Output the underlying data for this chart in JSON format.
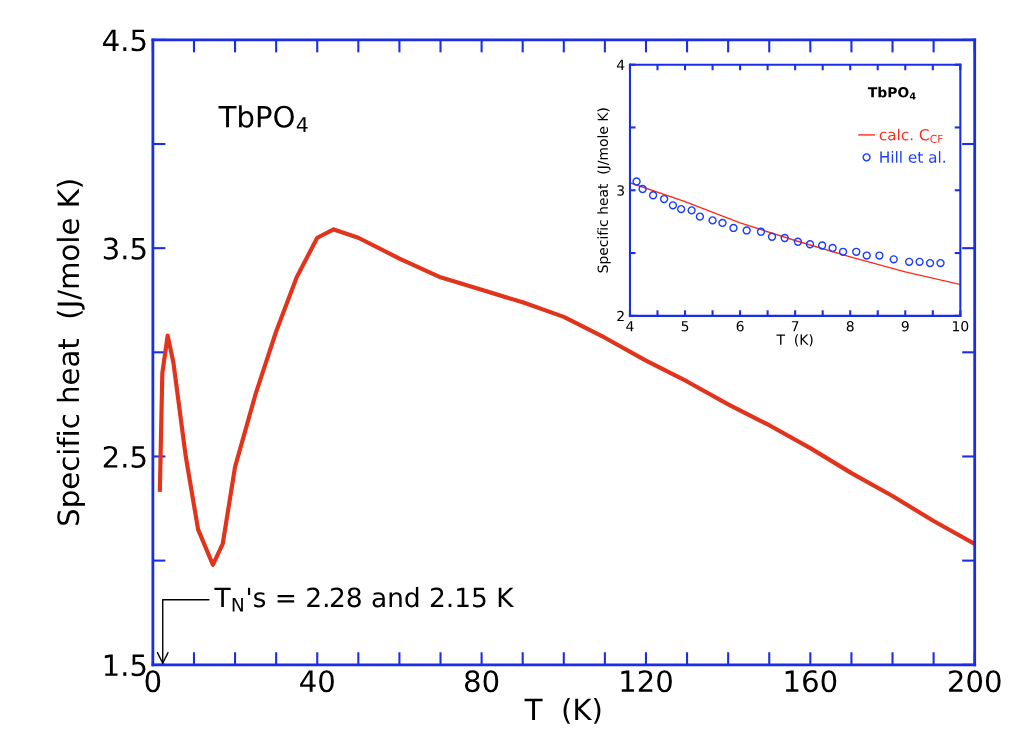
{
  "chart_data": [
    {
      "type": "line",
      "title": "TbPO$_{4}$",
      "xlabel": "T  (K)",
      "ylabel": "Specific heat  (J/mole K)",
      "color": "#e2341c",
      "x": [
        1.7,
        2.3,
        3.6,
        5,
        8,
        11,
        14.6,
        17,
        20,
        25,
        30,
        35,
        40,
        44,
        50,
        60,
        70,
        80,
        90,
        100,
        110,
        120,
        130,
        140,
        150,
        160,
        170,
        180,
        190,
        200
      ],
      "values": [
        2.34,
        2.9,
        3.08,
        2.95,
        2.5,
        2.15,
        1.98,
        2.08,
        2.45,
        2.8,
        3.1,
        3.36,
        3.55,
        3.59,
        3.55,
        3.45,
        3.36,
        3.3,
        3.24,
        3.17,
        3.07,
        2.96,
        2.86,
        2.75,
        2.65,
        2.54,
        2.42,
        2.31,
        2.19,
        2.08
      ],
      "xlim": [
        0,
        200
      ],
      "xticks": [
        0,
        {
          "value": 10,
          "label": null
        },
        {
          "value": 20,
          "label": null
        },
        {
          "value": 30,
          "label": null
        },
        40,
        {
          "value": 50,
          "label": null
        },
        {
          "value": 60,
          "label": null
        },
        {
          "value": 70,
          "label": null
        },
        80,
        {
          "value": 90,
          "label": null
        },
        {
          "value": 100,
          "label": null
        },
        {
          "value": 110,
          "label": null
        },
        120,
        {
          "value": 130,
          "label": null
        },
        {
          "value": 140,
          "label": null
        },
        {
          "value": 150,
          "label": null
        },
        160,
        {
          "value": 170,
          "label": null
        },
        {
          "value": 180,
          "label": null
        },
        {
          "value": 190,
          "label": null
        },
        200
      ],
      "ylim": [
        1.5,
        4.5
      ],
      "yticks": [
        1.5,
        {
          "value": 2.0,
          "label": null
        },
        2.5,
        {
          "value": 3.0,
          "label": null
        },
        3.5,
        {
          "value": 4.0,
          "label": null
        },
        4.5
      ],
      "annotations": [
        "T$_{N}$'s = 2.28 and 2.15 K"
      ],
      "grid": false,
      "legend": false
    },
    {
      "type": "line",
      "title": "TbPO$_{4}$",
      "xlabel": "T  (K)",
      "ylabel": "Specific heat  (J/mole K)",
      "series": [
        {
          "name": "calc. C$_{CF}$",
          "type": "line",
          "color": "#ff2a1a",
          "x": [
            4,
            5,
            6,
            7,
            8,
            9,
            10
          ],
          "values": [
            3.06,
            2.91,
            2.74,
            2.6,
            2.47,
            2.35,
            2.25
          ]
        },
        {
          "name": "Hill et al.",
          "type": "scatter",
          "marker": "circle",
          "color": "#1a3cff",
          "x": [
            4.12,
            4.23,
            4.42,
            4.62,
            4.78,
            4.93,
            5.12,
            5.27,
            5.5,
            5.68,
            5.88,
            6.12,
            6.38,
            6.58,
            6.81,
            7.05,
            7.27,
            7.49,
            7.68,
            7.87,
            8.11,
            8.3,
            8.53,
            8.79,
            9.07,
            9.26,
            9.45,
            9.64
          ],
          "values": [
            3.07,
            3.01,
            2.96,
            2.93,
            2.88,
            2.85,
            2.84,
            2.79,
            2.76,
            2.74,
            2.7,
            2.68,
            2.67,
            2.63,
            2.62,
            2.59,
            2.57,
            2.56,
            2.54,
            2.51,
            2.51,
            2.48,
            2.48,
            2.45,
            2.43,
            2.43,
            2.42,
            2.42
          ]
        }
      ],
      "xlim": [
        4,
        10
      ],
      "xticks": [
        4,
        {
          "value": 4.5,
          "label": null
        },
        5,
        {
          "value": 5.5,
          "label": null
        },
        6,
        {
          "value": 6.5,
          "label": null
        },
        7,
        {
          "value": 7.5,
          "label": null
        },
        8,
        {
          "value": 8.5,
          "label": null
        },
        9,
        {
          "value": 9.5,
          "label": null
        },
        10
      ],
      "ylim": [
        2,
        4
      ],
      "yticks": [
        2,
        {
          "value": 2.5,
          "label": null
        },
        3,
        {
          "value": 3.5,
          "label": null
        },
        4
      ],
      "grid": false,
      "legend": "top right"
    }
  ]
}
